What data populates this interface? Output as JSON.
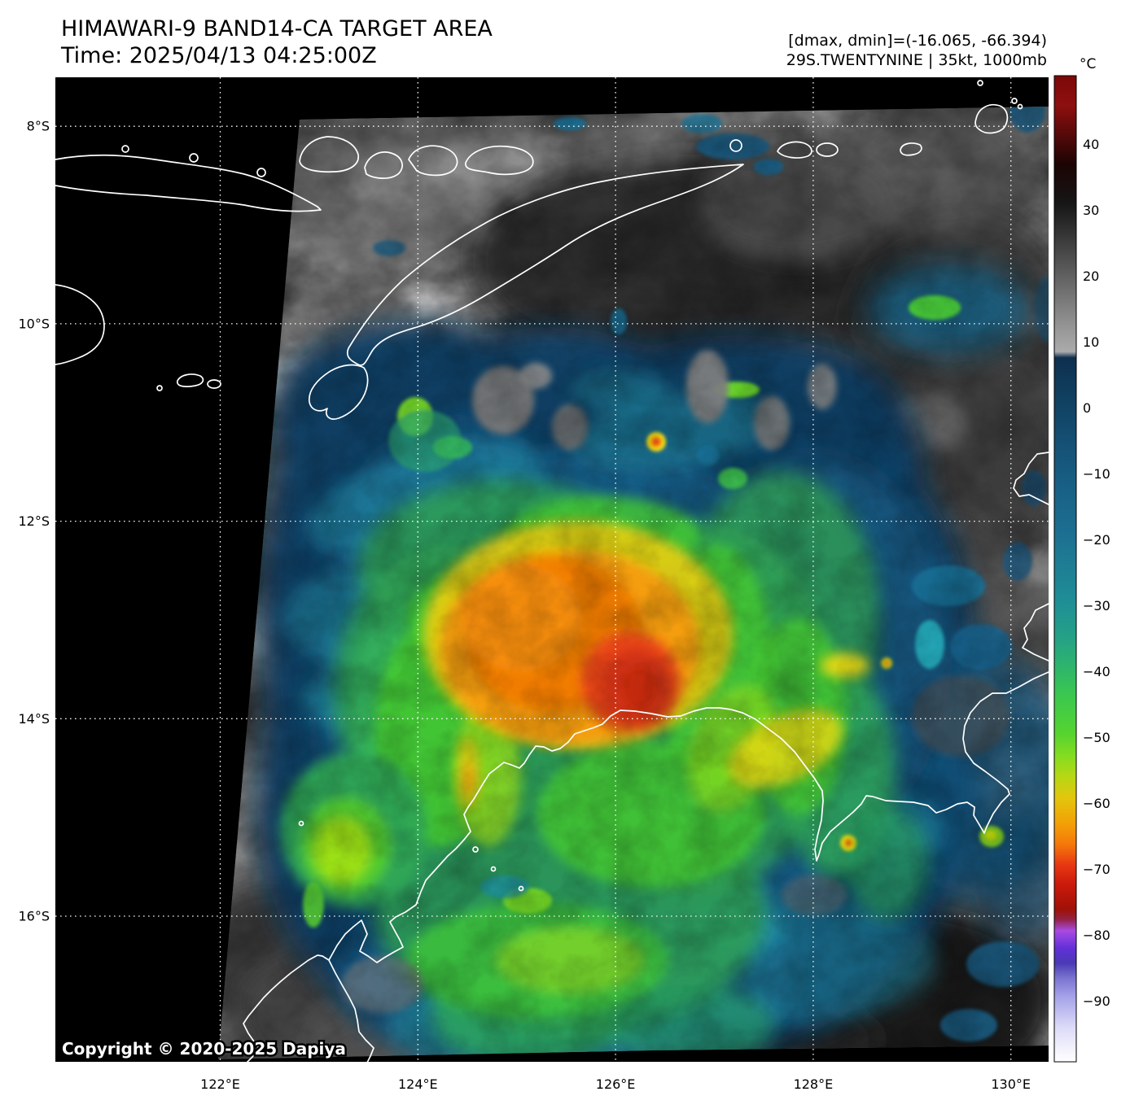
{
  "header": {
    "title": "HIMAWARI-9 BAND14-CA TARGET AREA",
    "time": "Time: 2025/04/13 04:25:00Z",
    "dmax_dmin": "[dmax, dmin]=(-16.065, -66.394)",
    "storm": "29S.TWENTYNINE | 35kt, 1000mb"
  },
  "colorbar": {
    "unit": "°C",
    "tick_labels": [
      "40",
      "30",
      "20",
      "10",
      "0",
      "−10",
      "−20",
      "−30",
      "−40",
      "−50",
      "−60",
      "−70",
      "−80",
      "−90"
    ]
  },
  "axes": {
    "lat_ticks": [
      "8°S",
      "10°S",
      "12°S",
      "14°S",
      "16°S"
    ],
    "lon_ticks": [
      "122°E",
      "124°E",
      "126°E",
      "128°E",
      "130°E"
    ]
  },
  "map": {
    "copyright": "Copyright © 2020-2025 Dapiya"
  }
}
